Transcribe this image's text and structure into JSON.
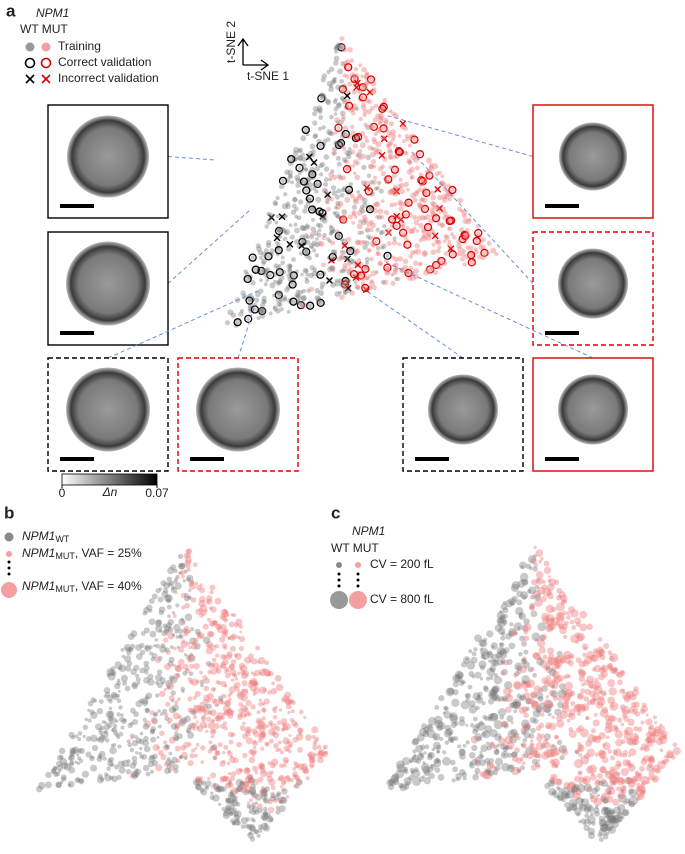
{
  "panel_a": {
    "label": "a",
    "gene": "NPM1",
    "groups": "WT MUT",
    "legend": [
      "Training",
      "Correct validation",
      "Incorrect validation"
    ],
    "axis_y": "t-SNE 2",
    "axis_x": "t-SNE 1"
  },
  "colorbar": {
    "label": "Δn",
    "range": [
      0,
      0.07
    ],
    "ticks": [
      0,
      0.07
    ]
  },
  "panel_b": {
    "label": "b",
    "legend": [
      {
        "name": "NPM1",
        "sub": "WT"
      },
      {
        "name": "NPM1",
        "sub": "MUT",
        "suffix": ", VAF = 25%"
      },
      {
        "name": "NPM1",
        "sub": "MUT",
        "suffix": ", VAF = 40%"
      }
    ]
  },
  "panel_c": {
    "label": "c",
    "gene": "NPM1",
    "groups": "WT MUT",
    "legend": [
      "CV = 200 fL",
      "CV = 800 fL"
    ]
  }
}
